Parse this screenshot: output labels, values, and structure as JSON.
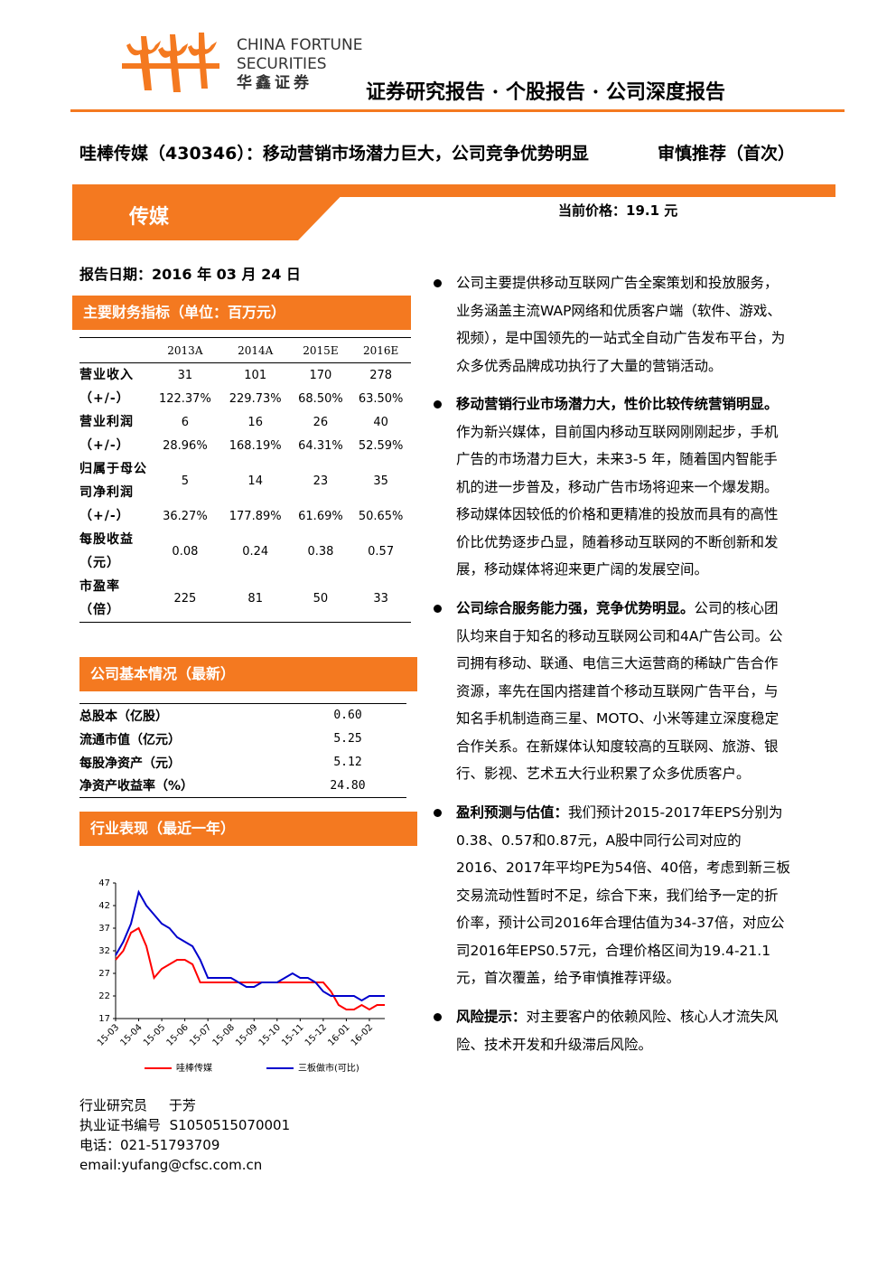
{
  "header": {
    "logo_lines": [
      "CHINA FORTUNE",
      "SECURITIES",
      "华鑫证券"
    ],
    "report_type": "证券研究报告 · 个股报告 · 公司深度报告",
    "title": "哇棒传媒（430346）：移动营销市场潜力巨大，公司竞争优势明显",
    "rating": "审慎推荐（首次）",
    "sector": "传媒",
    "price": "当前价格：19.1 元",
    "report_date": "报告日期：2016 年 03 月 24 日"
  },
  "financials": {
    "heading": "主要财务指标（单位：百万元）",
    "columns": [
      "2013A",
      "2014A",
      "2015E",
      "2016E"
    ],
    "rows": [
      {
        "label": "营业收入",
        "values": [
          "31",
          "101",
          "170",
          "278"
        ]
      },
      {
        "label": "（+/-）",
        "values": [
          "122.37%",
          "229.73%",
          "68.50%",
          "63.50%"
        ]
      },
      {
        "label": "营业利润",
        "values": [
          "6",
          "16",
          "26",
          "40"
        ]
      },
      {
        "label": "（+/-）",
        "values": [
          "28.96%",
          "168.19%",
          "64.31%",
          "52.59%"
        ]
      },
      {
        "label": "归属于母公司净利润",
        "values": [
          "5",
          "14",
          "23",
          "35"
        ]
      },
      {
        "label": "（+/-）",
        "values": [
          "36.27%",
          "177.89%",
          "61.69%",
          "50.65%"
        ]
      },
      {
        "label": "每股收益（元）",
        "values": [
          "0.08",
          "0.24",
          "0.38",
          "0.57"
        ]
      },
      {
        "label": "市盈率（倍）",
        "values": [
          "225",
          "81",
          "50",
          "33"
        ]
      }
    ]
  },
  "basics": {
    "heading": "公司基本情况（最新）",
    "rows": [
      [
        "总股本（亿股）",
        "0.60"
      ],
      [
        "流通市值（亿元）",
        "5.25"
      ],
      [
        "每股净资产（元）",
        "5.12"
      ],
      [
        "净资产收益率（%）",
        "24.80"
      ]
    ]
  },
  "industry": {
    "heading": "行业表现（最近一年）"
  },
  "chart_data": {
    "type": "line",
    "categories": [
      "15-03",
      null,
      null,
      "15-04",
      null,
      null,
      "15-05",
      null,
      null,
      "15-06",
      null,
      null,
      "15-07",
      null,
      null,
      "15-08",
      null,
      null,
      "15-09",
      null,
      null,
      "15-10",
      null,
      null,
      "15-11",
      null,
      null,
      "15-12",
      null,
      null,
      "16-01",
      null,
      null,
      "16-02",
      null,
      null
    ],
    "series": [
      {
        "name": "哇棒传媒",
        "color": "#ff0000",
        "values": [
          30,
          32,
          36,
          37,
          33,
          26,
          28,
          29,
          30,
          30,
          29,
          25,
          25,
          25,
          25,
          25,
          25,
          25,
          25,
          25,
          25,
          25,
          25,
          25,
          25,
          25,
          25,
          25,
          23,
          20,
          19,
          19,
          20,
          19,
          20,
          20
        ]
      },
      {
        "name": "三板做市(可比)",
        "color": "#0000cc",
        "values": [
          31,
          34,
          38,
          45,
          42,
          40,
          38,
          37,
          35,
          34,
          33,
          30,
          26,
          26,
          26,
          26,
          25,
          24,
          24,
          25,
          25,
          25,
          26,
          27,
          26,
          26,
          25,
          23,
          22,
          22,
          22,
          22,
          21,
          22,
          22,
          22
        ]
      }
    ],
    "ylim": [
      17,
      47
    ],
    "yticks": [
      17,
      22,
      27,
      32,
      37,
      42,
      47
    ],
    "legend": "bottom"
  },
  "analyst": {
    "role": "行业研究员",
    "name": "于芳",
    "license_label": "执业证书编号",
    "license_number": "S1050515070001",
    "phone": "电话：021-51793709",
    "email": "email:yufang@cfsc.com.cn"
  },
  "bullets": [
    {
      "text": "公司主要提供移动互联网广告全案策划和投放服务，业务涵盖主流WAP网络和优质客户端（软件、游戏、视频），是中国领先的一站式全自动广告发布平台，为众多优秀品牌成功执行了大量的营销活动。"
    },
    {
      "lead": "移动营销行业市场潜力大，性价比较传统营销明显。",
      "text": "作为新兴媒体，目前国内移动互联网刚刚起步，手机广告的市场潜力巨大，未来3-5 年，随着国内智能手机的进一步普及，移动广告市场将迎来一个爆发期。移动媒体因较低的价格和更精准的投放而具有的高性价比优势逐步凸显，随着移动互联网的不断创新和发展，移动媒体将迎来更广阔的发展空间。"
    },
    {
      "lead": "公司综合服务能力强，竞争优势明显。",
      "text": "公司的核心团队均来自于知名的移动互联网公司和4A广告公司。公司拥有移动、联通、电信三大运营商的稀缺广告合作资源，率先在国内搭建首个移动互联网广告平台，与知名手机制造商三星、MOTO、小米等建立深度稳定合作关系。在新媒体认知度较高的互联网、旅游、银行、影视、艺术五大行业积累了众多优质客户。"
    },
    {
      "lead": "盈利预测与估值：",
      "text": "我们预计2015-2017年EPS分别为0.38、0.57和0.87元，A股中同行公司对应的2016、2017年平均PE为54倍、40倍，考虑到新三板交易流动性暂时不足，综合下来，我们给予一定的折价率，预计公司2016年合理估值为34-37倍，对应公司2016年EPS0.57元，合理价格区间为19.4-21.1元，首次覆盖，给予审慎推荐评级。"
    },
    {
      "lead": "风险提示：",
      "text": "对主要客户的依赖风险、核心人才流失风险、技术开发和升级滞后风险。"
    }
  ]
}
